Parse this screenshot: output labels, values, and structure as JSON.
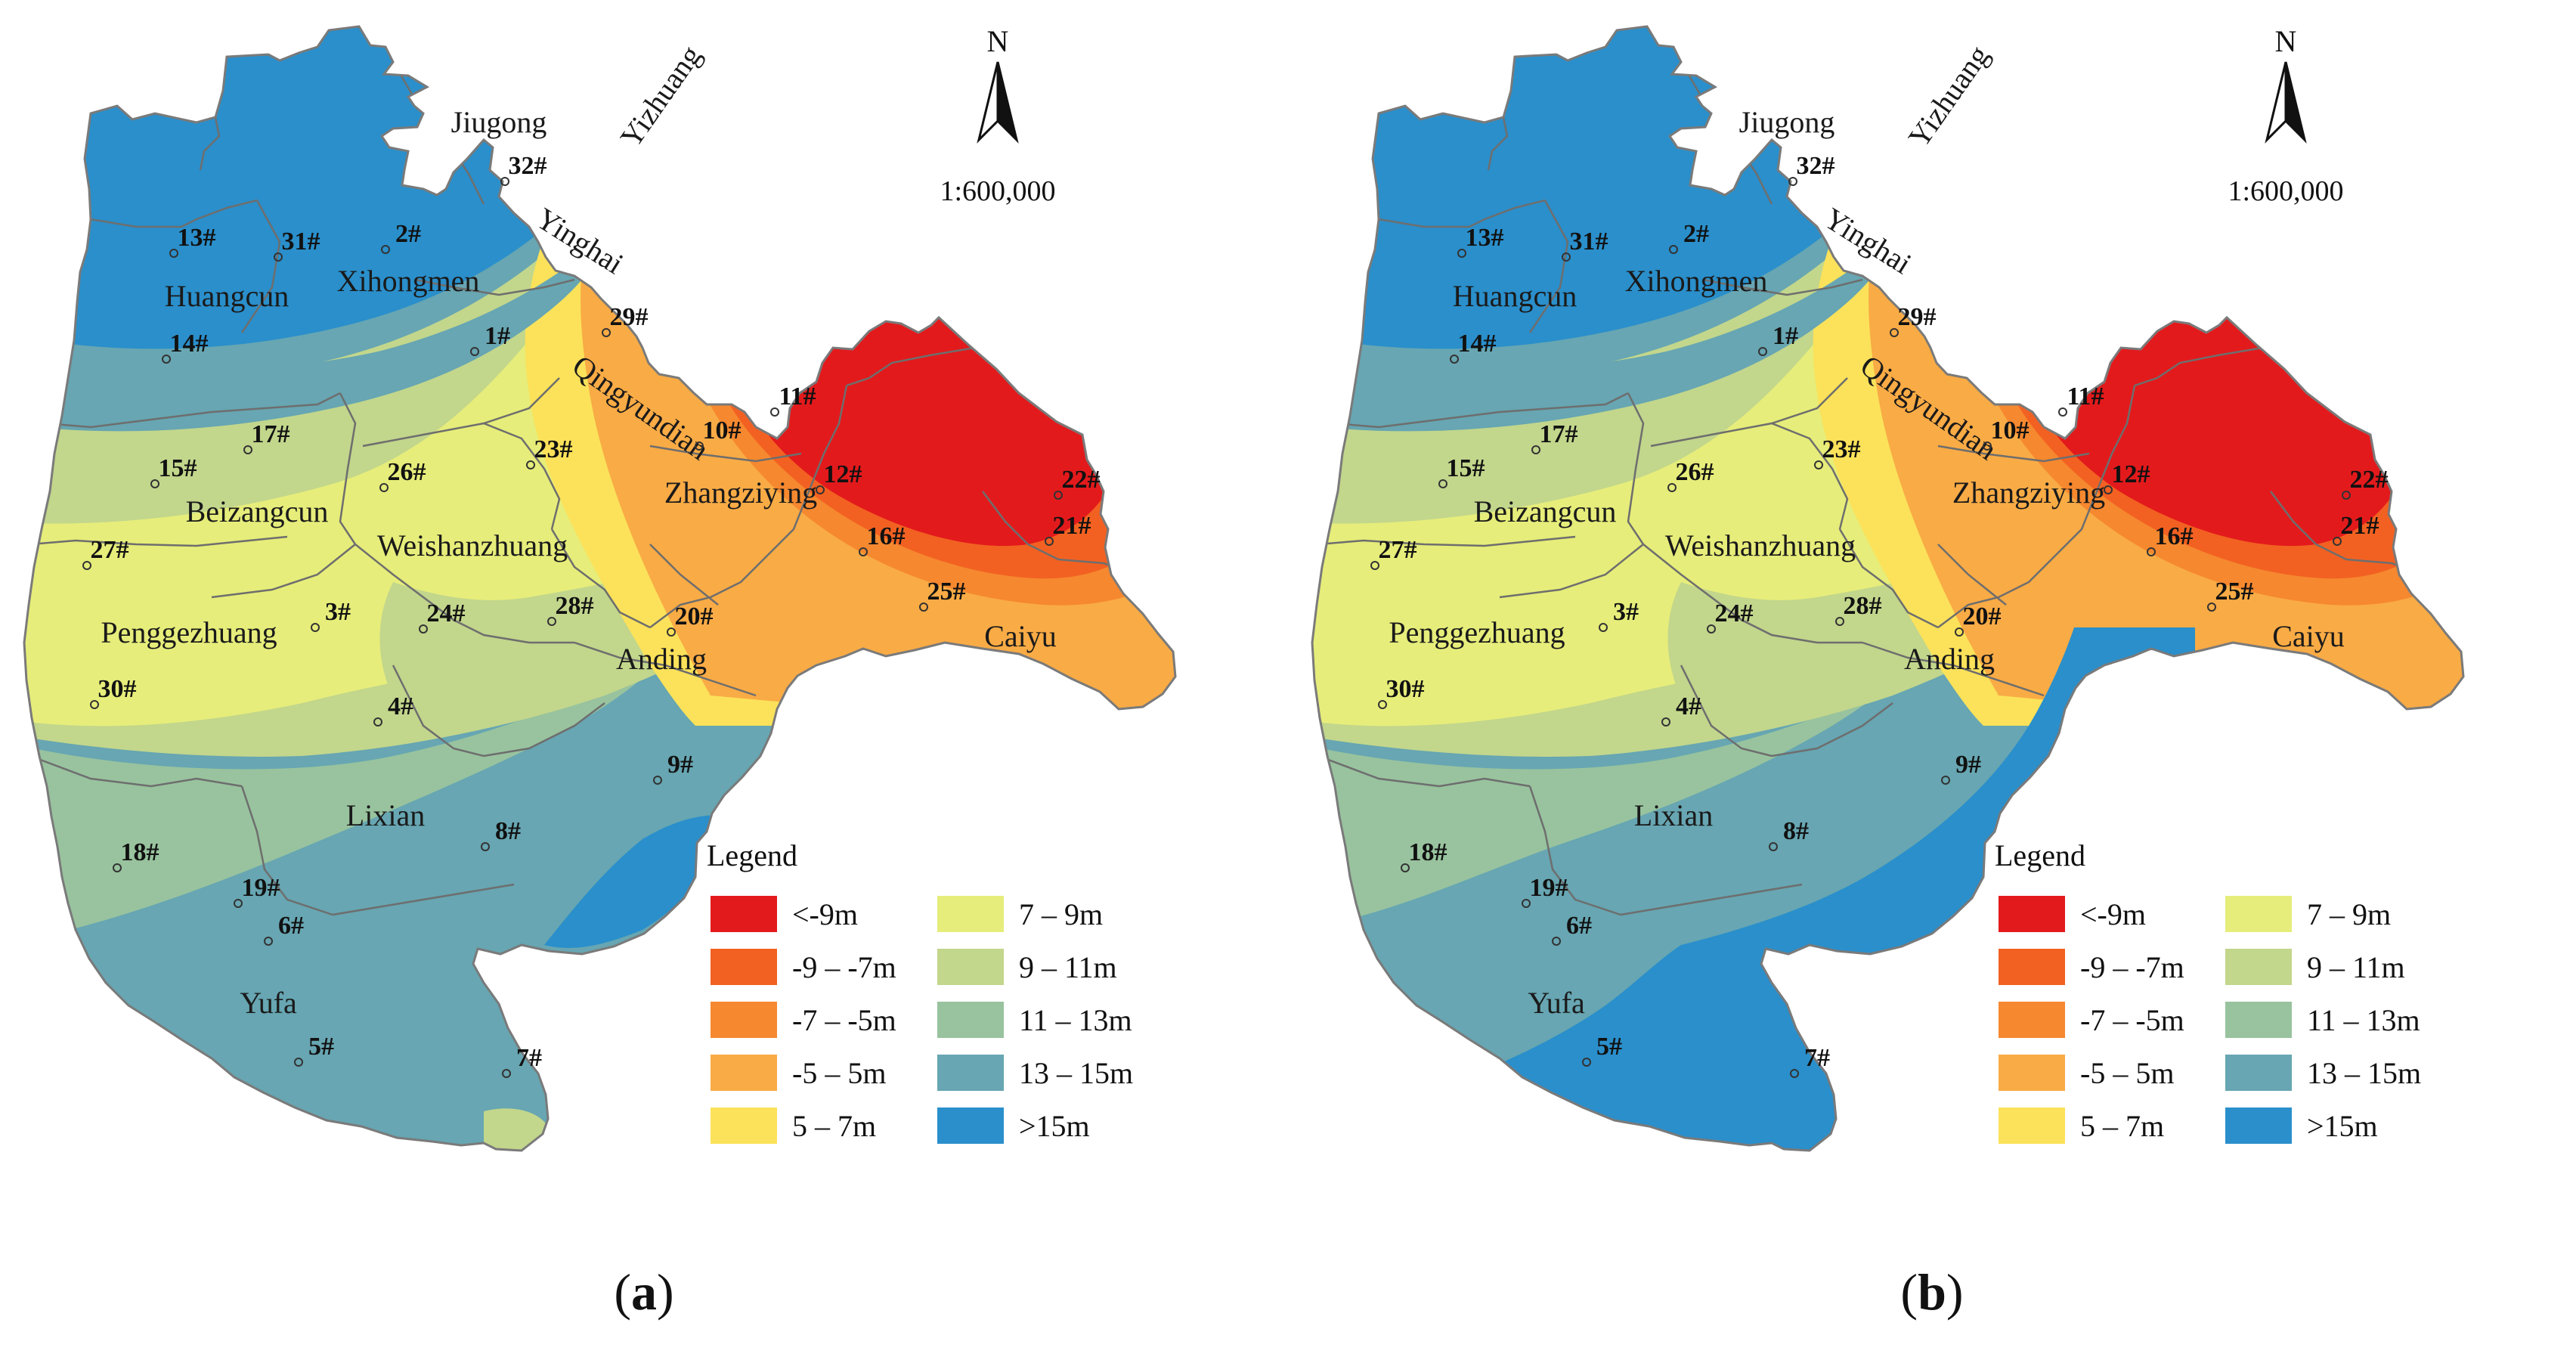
{
  "panels": [
    {
      "caption_open": "(",
      "caption_letter": "a",
      "caption_close": ")",
      "north_label": "N",
      "scale": "1:600,000",
      "legend_title": "Legend"
    },
    {
      "caption_open": "(",
      "caption_letter": "b",
      "caption_close": ")",
      "north_label": "N",
      "scale": "1:600,000",
      "legend_title": "Legend"
    }
  ],
  "legend_classes": [
    {
      "label": "<-9m",
      "color": "#e31a1c"
    },
    {
      "label": "-9 – -7m",
      "color": "#f26122"
    },
    {
      "label": "-7 – -5m",
      "color": "#f6882f"
    },
    {
      "label": "-5 – 5m",
      "color": "#f9ab45"
    },
    {
      "label": "5 – 7m",
      "color": "#fbe25a"
    },
    {
      "label": "7 – 9m",
      "color": "#e6ed7a"
    },
    {
      "label": "9 – 11m",
      "color": "#c2d68c"
    },
    {
      "label": "11 – 13m",
      "color": "#98c39e"
    },
    {
      "label": "13 – 15m",
      "color": "#67a6b2"
    },
    {
      "label": ">15m",
      "color": "#2a8fcb"
    }
  ],
  "towns": [
    {
      "name": "Jiugong"
    },
    {
      "name": "Yizhuang"
    },
    {
      "name": "Yinghai"
    },
    {
      "name": "Huangcun"
    },
    {
      "name": "Xihongmen"
    },
    {
      "name": "Qingyundian"
    },
    {
      "name": "Zhangziying"
    },
    {
      "name": "Beizangcun"
    },
    {
      "name": "Weishanzhuang"
    },
    {
      "name": "Penggezhuang"
    },
    {
      "name": "Anding"
    },
    {
      "name": "Caiyu"
    },
    {
      "name": "Lixian"
    },
    {
      "name": "Yufa"
    }
  ],
  "wells": [
    {
      "label": "32#"
    },
    {
      "label": "13#"
    },
    {
      "label": "31#"
    },
    {
      "label": "2#"
    },
    {
      "label": "29#"
    },
    {
      "label": "1#"
    },
    {
      "label": "14#"
    },
    {
      "label": "11#"
    },
    {
      "label": "10#"
    },
    {
      "label": "17#"
    },
    {
      "label": "23#"
    },
    {
      "label": "15#"
    },
    {
      "label": "26#"
    },
    {
      "label": "12#"
    },
    {
      "label": "22#"
    },
    {
      "label": "21#"
    },
    {
      "label": "16#"
    },
    {
      "label": "27#"
    },
    {
      "label": "25#"
    },
    {
      "label": "3#"
    },
    {
      "label": "24#"
    },
    {
      "label": "28#"
    },
    {
      "label": "20#"
    },
    {
      "label": "30#"
    },
    {
      "label": "4#"
    },
    {
      "label": "9#"
    },
    {
      "label": "8#"
    },
    {
      "label": "18#"
    },
    {
      "label": "19#"
    },
    {
      "label": "6#"
    },
    {
      "label": "5#"
    },
    {
      "label": "7#"
    }
  ]
}
